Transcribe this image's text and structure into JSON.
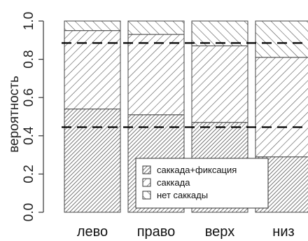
{
  "chart_data": {
    "type": "bar",
    "stacked": true,
    "ylabel": "вероятность",
    "xlabel": "",
    "ylim": [
      0,
      1
    ],
    "yticks": [
      0.0,
      0.2,
      0.4,
      0.6,
      0.8,
      1.0
    ],
    "ytick_labels": [
      "0.0",
      "0.2",
      "0.4",
      "0.6",
      "0.8",
      "1.0"
    ],
    "categories": [
      "лево",
      "право",
      "верх",
      "низ"
    ],
    "series": [
      {
        "name": "саккада+фиксация",
        "values": [
          0.54,
          0.51,
          0.47,
          0.29
        ],
        "pattern": "dense-hatch"
      },
      {
        "name": "саккада",
        "values": [
          0.41,
          0.42,
          0.4,
          0.52
        ],
        "pattern": "medium-hatch"
      },
      {
        "name": "нет саккады",
        "values": [
          0.05,
          0.07,
          0.13,
          0.19
        ],
        "pattern": "sparse-hatch"
      }
    ],
    "reference_lines": [
      0.885,
      0.445
    ],
    "legend_position": "bottom-center",
    "grid": false
  },
  "colors": {
    "hatch": "#555555",
    "bar_outline": "#444444",
    "reference_line": "#000000"
  }
}
